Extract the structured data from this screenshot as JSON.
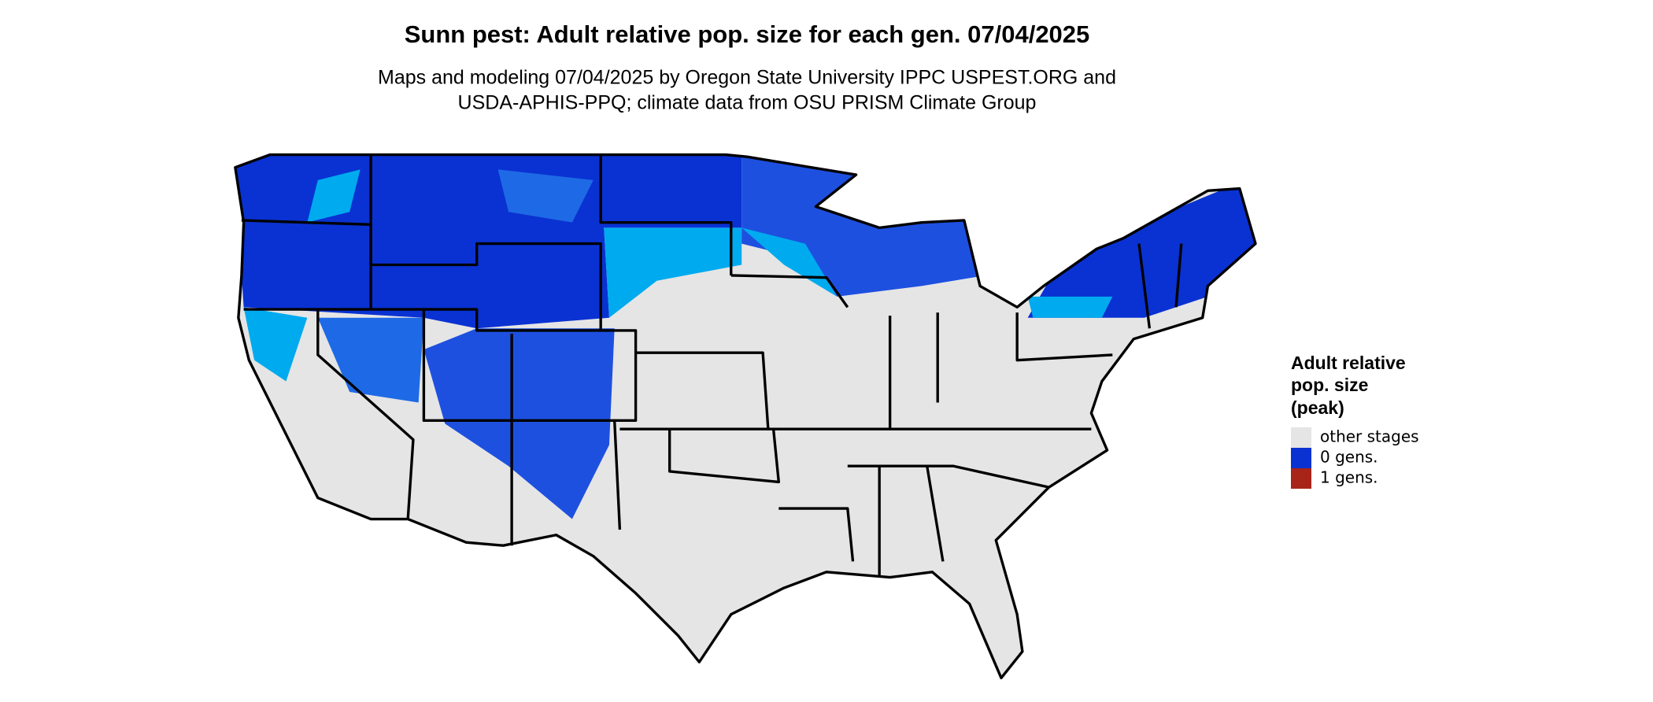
{
  "title": "Sunn pest: Adult relative pop. size for each gen. 07/04/2025",
  "subtitle": [
    "Maps and modeling 07/04/2025 by Oregon State University IPPC USPEST.ORG and",
    "USDA-APHIS-PPQ; climate data from OSU PRISM Climate Group"
  ],
  "legend": {
    "title": [
      "Adult relative",
      "pop. size",
      "(peak)"
    ],
    "items": [
      {
        "label": "other stages",
        "color": "#e5e5e5"
      },
      {
        "label": "0 gens.",
        "color": "#0a32d2"
      },
      {
        "label": "1 gens.",
        "color": "#a82418"
      }
    ]
  }
}
